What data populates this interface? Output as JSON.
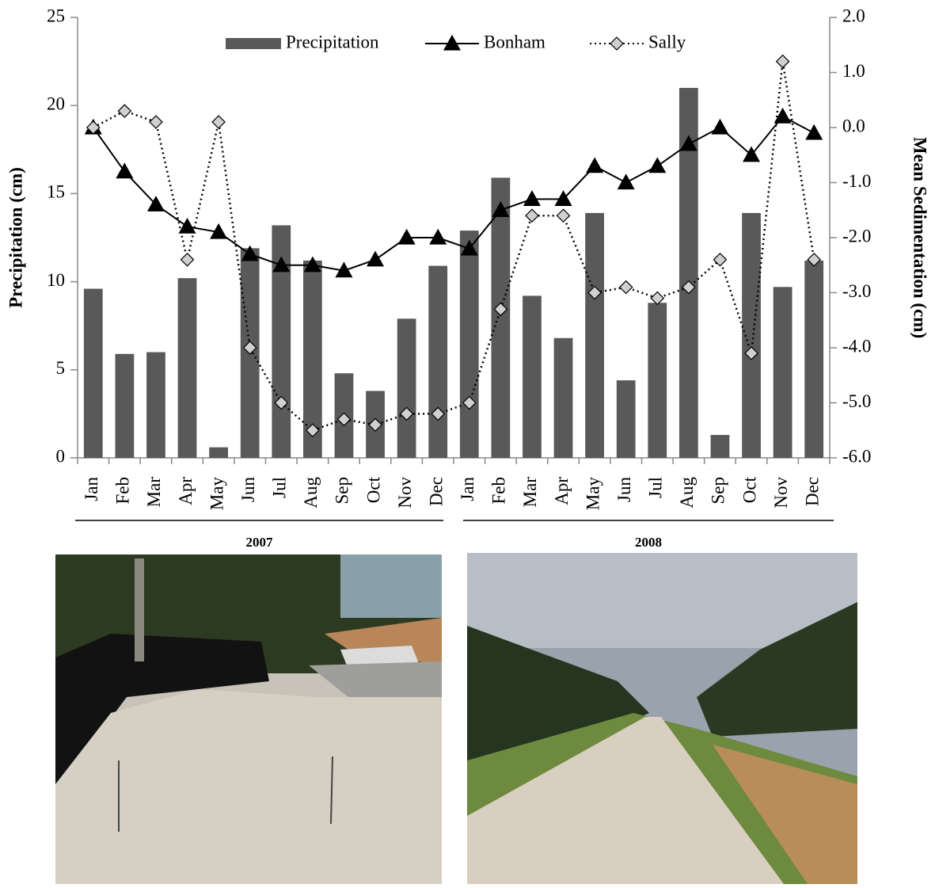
{
  "chart_data": {
    "type": "bar-line",
    "categories": [
      "Jan",
      "Feb",
      "Mar",
      "Apr",
      "May",
      "Jun",
      "Jul",
      "Aug",
      "Sep",
      "Oct",
      "Nov",
      "Dec",
      "Jan",
      "Feb",
      "Mar",
      "Apr",
      "May",
      "Jun",
      "Jul",
      "Aug",
      "Sep",
      "Oct",
      "Nov",
      "Dec"
    ],
    "groups": [
      {
        "label": "2007",
        "count": 12
      },
      {
        "label": "2008",
        "count": 12
      }
    ],
    "y_label": "Precipitation (cm)",
    "y2_label": "Mean Sedimentation (cm)",
    "ylim": [
      0,
      25
    ],
    "yticks": [
      0,
      5,
      10,
      15,
      20,
      25
    ],
    "y2lim": [
      -6,
      2
    ],
    "y2ticks": [
      {
        "value": -6,
        "label": "-6.0"
      },
      {
        "value": -5,
        "label": "-5.0"
      },
      {
        "value": -4,
        "label": "-4.0"
      },
      {
        "value": -3,
        "label": "-3.0"
      },
      {
        "value": -2,
        "label": "-2.0"
      },
      {
        "value": -1,
        "label": "-1.0"
      },
      {
        "value": 0,
        "label": "0.0"
      },
      {
        "value": 1,
        "label": "1.0"
      },
      {
        "value": 2,
        "label": "2.0"
      }
    ],
    "legend": "top",
    "series": [
      {
        "name": "Precipitation",
        "kind": "bar",
        "color": "#595959",
        "values": [
          9.6,
          5.9,
          6.0,
          10.2,
          0.6,
          11.9,
          13.2,
          11.2,
          4.8,
          3.8,
          7.9,
          10.9,
          12.9,
          15.9,
          9.2,
          6.8,
          13.9,
          4.4,
          8.8,
          21.0,
          1.3,
          13.9,
          9.7,
          11.2
        ]
      },
      {
        "name": "Bonham",
        "kind": "line",
        "axis": "y2",
        "color": "#000000",
        "marker": "triangle",
        "dash": "solid",
        "values": [
          0.0,
          -0.8,
          -1.4,
          -1.8,
          -1.9,
          -2.3,
          -2.5,
          -2.5,
          -2.6,
          -2.4,
          -2.0,
          -2.0,
          -2.2,
          -1.5,
          -1.3,
          -1.3,
          -0.7,
          -1.0,
          -0.7,
          -0.3,
          0.0,
          -0.5,
          0.2,
          -0.1
        ]
      },
      {
        "name": "Sally",
        "kind": "line",
        "axis": "y2",
        "color": "#000000",
        "marker": "diamond",
        "marker_fill": "#d0d0d0",
        "dash": "dotted",
        "values": [
          0.0,
          0.3,
          0.1,
          -2.4,
          0.1,
          -4.0,
          -5.0,
          -5.5,
          -5.3,
          -5.4,
          -5.2,
          -5.2,
          -5.0,
          -3.3,
          -1.6,
          -1.6,
          -3.0,
          -2.9,
          -3.1,
          -2.9,
          -2.4,
          -4.1,
          1.2,
          -2.4
        ]
      }
    ]
  }
}
